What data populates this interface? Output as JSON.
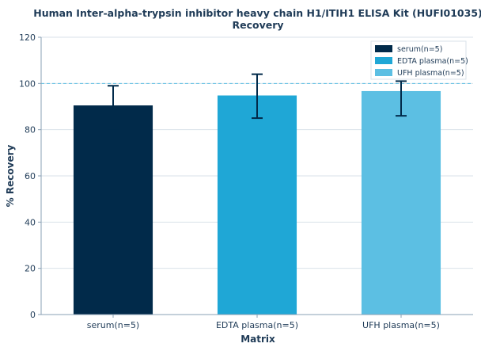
{
  "chart_data": {
    "type": "bar",
    "title_line1": "Human Inter-alpha-trypsin inhibitor heavy chain H1/ITIH1 ELISA Kit (HUFI01035)",
    "title_line2": "Recovery",
    "xlabel": "Matrix",
    "ylabel": "% Recovery",
    "ylim": [
      0,
      120
    ],
    "yticks": [
      0,
      20,
      40,
      60,
      80,
      100,
      120
    ],
    "categories": [
      "serum(n=5)",
      "EDTA plasma(n=5)",
      "UFH plasma(n=5)"
    ],
    "values": [
      90.5,
      94.8,
      96.7
    ],
    "error_low": [
      80.5,
      85,
      86
    ],
    "error_high": [
      99,
      104,
      101
    ],
    "colors": [
      "#012a4a",
      "#1fa7d6",
      "#5cbfe3"
    ],
    "reference_line": 100,
    "reference_line_color": "#5cbfe3",
    "error_bar_color": "#012a4a",
    "legend": {
      "placement": "top-right",
      "entries": [
        "serum(n=5)",
        "EDTA plasma(n=5)",
        "UFH plasma(n=5)"
      ]
    },
    "grid": true
  }
}
